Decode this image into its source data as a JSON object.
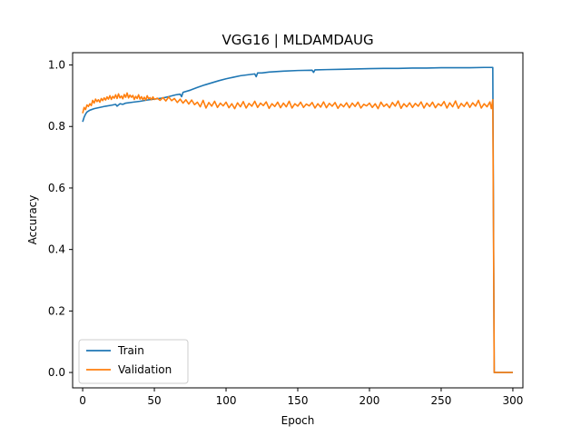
{
  "chart_data": {
    "type": "line",
    "title": "VGG16 | MLDAMDAUG",
    "xlabel": "Epoch",
    "ylabel": "Accuracy",
    "xlim": [
      -7,
      307
    ],
    "ylim": [
      -0.05,
      1.04
    ],
    "xticks": [
      0,
      50,
      100,
      150,
      200,
      250,
      300
    ],
    "yticks": [
      0.0,
      0.2,
      0.4,
      0.6,
      0.8,
      1.0
    ],
    "xtick_labels": [
      "0",
      "50",
      "100",
      "150",
      "200",
      "250",
      "300"
    ],
    "ytick_labels": [
      "0.0",
      "0.2",
      "0.4",
      "0.6",
      "0.8",
      "1.0"
    ],
    "legend_position": "lower-left",
    "series": [
      {
        "name": "Train",
        "color": "#1f77b4",
        "points": [
          [
            0,
            0.815
          ],
          [
            1,
            0.83
          ],
          [
            2,
            0.84
          ],
          [
            3,
            0.847
          ],
          [
            5,
            0.853
          ],
          [
            8,
            0.858
          ],
          [
            12,
            0.862
          ],
          [
            16,
            0.866
          ],
          [
            20,
            0.869
          ],
          [
            23,
            0.872
          ],
          [
            24,
            0.866
          ],
          [
            26,
            0.874
          ],
          [
            28,
            0.872
          ],
          [
            30,
            0.876
          ],
          [
            35,
            0.879
          ],
          [
            40,
            0.882
          ],
          [
            45,
            0.886
          ],
          [
            50,
            0.889
          ],
          [
            55,
            0.892
          ],
          [
            60,
            0.897
          ],
          [
            65,
            0.903
          ],
          [
            68,
            0.905
          ],
          [
            69,
            0.897
          ],
          [
            70,
            0.911
          ],
          [
            75,
            0.918
          ],
          [
            80,
            0.927
          ],
          [
            85,
            0.935
          ],
          [
            90,
            0.942
          ],
          [
            95,
            0.949
          ],
          [
            100,
            0.955
          ],
          [
            105,
            0.96
          ],
          [
            110,
            0.965
          ],
          [
            115,
            0.968
          ],
          [
            120,
            0.971
          ],
          [
            121,
            0.962
          ],
          [
            122,
            0.974
          ],
          [
            125,
            0.974
          ],
          [
            130,
            0.977
          ],
          [
            140,
            0.98
          ],
          [
            150,
            0.982
          ],
          [
            160,
            0.983
          ],
          [
            161,
            0.976
          ],
          [
            162,
            0.984
          ],
          [
            170,
            0.985
          ],
          [
            180,
            0.986
          ],
          [
            190,
            0.987
          ],
          [
            200,
            0.988
          ],
          [
            210,
            0.989
          ],
          [
            220,
            0.989
          ],
          [
            230,
            0.99
          ],
          [
            240,
            0.99
          ],
          [
            250,
            0.991
          ],
          [
            260,
            0.991
          ],
          [
            270,
            0.991
          ],
          [
            280,
            0.992
          ],
          [
            286,
            0.992
          ],
          [
            287,
            0.0
          ],
          [
            300,
            0.0
          ]
        ]
      },
      {
        "name": "Validation",
        "color": "#ff7f0e",
        "points": [
          [
            0,
            0.843
          ],
          [
            1,
            0.862
          ],
          [
            2,
            0.855
          ],
          [
            3,
            0.87
          ],
          [
            4,
            0.865
          ],
          [
            5,
            0.874
          ],
          [
            6,
            0.868
          ],
          [
            7,
            0.885
          ],
          [
            8,
            0.876
          ],
          [
            9,
            0.889
          ],
          [
            10,
            0.881
          ],
          [
            11,
            0.887
          ],
          [
            12,
            0.879
          ],
          [
            13,
            0.891
          ],
          [
            14,
            0.884
          ],
          [
            15,
            0.893
          ],
          [
            16,
            0.886
          ],
          [
            17,
            0.896
          ],
          [
            18,
            0.889
          ],
          [
            19,
            0.9
          ],
          [
            20,
            0.888
          ],
          [
            21,
            0.898
          ],
          [
            22,
            0.892
          ],
          [
            23,
            0.903
          ],
          [
            24,
            0.891
          ],
          [
            25,
            0.906
          ],
          [
            26,
            0.893
          ],
          [
            27,
            0.899
          ],
          [
            28,
            0.89
          ],
          [
            29,
            0.904
          ],
          [
            30,
            0.895
          ],
          [
            31,
            0.909
          ],
          [
            32,
            0.893
          ],
          [
            33,
            0.902
          ],
          [
            34,
            0.895
          ],
          [
            35,
            0.901
          ],
          [
            36,
            0.888
          ],
          [
            37,
            0.898
          ],
          [
            38,
            0.891
          ],
          [
            39,
            0.903
          ],
          [
            40,
            0.889
          ],
          [
            41,
            0.897
          ],
          [
            42,
            0.887
          ],
          [
            43,
            0.895
          ],
          [
            44,
            0.886
          ],
          [
            45,
            0.9
          ],
          [
            46,
            0.89
          ],
          [
            47,
            0.894
          ],
          [
            48,
            0.887
          ],
          [
            49,
            0.896
          ],
          [
            50,
            0.888
          ],
          [
            52,
            0.892
          ],
          [
            54,
            0.885
          ],
          [
            56,
            0.894
          ],
          [
            58,
            0.883
          ],
          [
            60,
            0.896
          ],
          [
            62,
            0.884
          ],
          [
            64,
            0.891
          ],
          [
            66,
            0.878
          ],
          [
            68,
            0.889
          ],
          [
            70,
            0.876
          ],
          [
            72,
            0.887
          ],
          [
            74,
            0.873
          ],
          [
            76,
            0.886
          ],
          [
            78,
            0.871
          ],
          [
            80,
            0.879
          ],
          [
            82,
            0.864
          ],
          [
            84,
            0.885
          ],
          [
            86,
            0.86
          ],
          [
            88,
            0.878
          ],
          [
            90,
            0.866
          ],
          [
            92,
            0.882
          ],
          [
            94,
            0.862
          ],
          [
            96,
            0.876
          ],
          [
            98,
            0.867
          ],
          [
            100,
            0.879
          ],
          [
            102,
            0.861
          ],
          [
            104,
            0.874
          ],
          [
            106,
            0.858
          ],
          [
            108,
            0.877
          ],
          [
            110,
            0.864
          ],
          [
            112,
            0.881
          ],
          [
            114,
            0.86
          ],
          [
            116,
            0.875
          ],
          [
            118,
            0.866
          ],
          [
            120,
            0.882
          ],
          [
            122,
            0.862
          ],
          [
            124,
            0.876
          ],
          [
            126,
            0.868
          ],
          [
            128,
            0.88
          ],
          [
            130,
            0.859
          ],
          [
            132,
            0.874
          ],
          [
            134,
            0.865
          ],
          [
            136,
            0.879
          ],
          [
            138,
            0.861
          ],
          [
            140,
            0.876
          ],
          [
            142,
            0.864
          ],
          [
            144,
            0.882
          ],
          [
            146,
            0.86
          ],
          [
            148,
            0.874
          ],
          [
            150,
            0.866
          ],
          [
            152,
            0.879
          ],
          [
            154,
            0.862
          ],
          [
            156,
            0.873
          ],
          [
            158,
            0.867
          ],
          [
            160,
            0.878
          ],
          [
            162,
            0.86
          ],
          [
            164,
            0.874
          ],
          [
            166,
            0.863
          ],
          [
            168,
            0.88
          ],
          [
            170,
            0.861
          ],
          [
            172,
            0.875
          ],
          [
            174,
            0.866
          ],
          [
            176,
            0.878
          ],
          [
            178,
            0.859
          ],
          [
            180,
            0.873
          ],
          [
            182,
            0.864
          ],
          [
            184,
            0.877
          ],
          [
            186,
            0.861
          ],
          [
            188,
            0.876
          ],
          [
            190,
            0.865
          ],
          [
            192,
            0.879
          ],
          [
            194,
            0.86
          ],
          [
            196,
            0.872
          ],
          [
            198,
            0.867
          ],
          [
            200,
            0.876
          ],
          [
            202,
            0.862
          ],
          [
            204,
            0.874
          ],
          [
            206,
            0.858
          ],
          [
            208,
            0.879
          ],
          [
            210,
            0.865
          ],
          [
            212,
            0.873
          ],
          [
            214,
            0.861
          ],
          [
            216,
            0.878
          ],
          [
            218,
            0.866
          ],
          [
            220,
            0.883
          ],
          [
            222,
            0.859
          ],
          [
            224,
            0.874
          ],
          [
            226,
            0.864
          ],
          [
            228,
            0.877
          ],
          [
            230,
            0.862
          ],
          [
            232,
            0.875
          ],
          [
            234,
            0.866
          ],
          [
            236,
            0.88
          ],
          [
            238,
            0.86
          ],
          [
            240,
            0.876
          ],
          [
            242,
            0.865
          ],
          [
            244,
            0.879
          ],
          [
            246,
            0.861
          ],
          [
            248,
            0.874
          ],
          [
            250,
            0.867
          ],
          [
            252,
            0.881
          ],
          [
            254,
            0.86
          ],
          [
            256,
            0.877
          ],
          [
            258,
            0.864
          ],
          [
            260,
            0.883
          ],
          [
            262,
            0.859
          ],
          [
            264,
            0.875
          ],
          [
            266,
            0.865
          ],
          [
            268,
            0.879
          ],
          [
            270,
            0.862
          ],
          [
            272,
            0.877
          ],
          [
            274,
            0.866
          ],
          [
            276,
            0.885
          ],
          [
            278,
            0.86
          ],
          [
            280,
            0.874
          ],
          [
            282,
            0.864
          ],
          [
            284,
            0.88
          ],
          [
            285,
            0.858
          ],
          [
            286,
            0.887
          ],
          [
            287,
            0.0
          ],
          [
            300,
            0.0
          ]
        ]
      }
    ]
  }
}
